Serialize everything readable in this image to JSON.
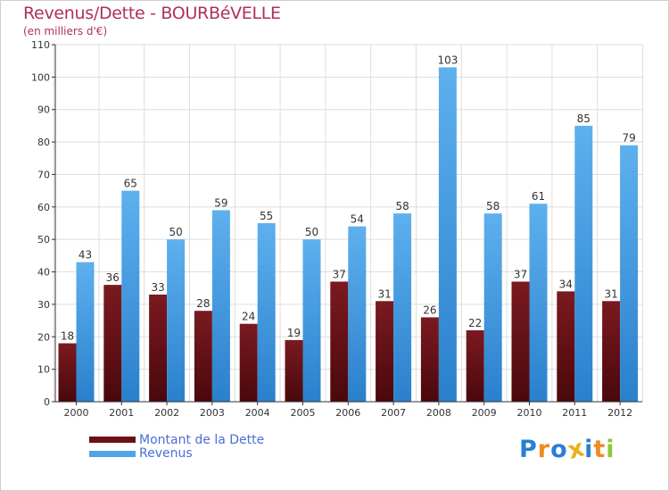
{
  "title": "Revenus/Dette - BOURBéVELLE",
  "subtitle": "(en milliers d'€)",
  "colors": {
    "dette": "#6b1016",
    "revenus": "#4ea5e8",
    "title": "#b0305a",
    "legend_text": "#4a6fd6"
  },
  "legend": {
    "dette_label": "Montant de la Dette",
    "revenus_label": "Revenus"
  },
  "logo": {
    "letters": [
      "P",
      "r",
      "o",
      "x",
      "i",
      "t",
      "i"
    ],
    "colors": [
      "#2a7fd4",
      "#f08a24",
      "#2a7fd4",
      "#e8b21a",
      "#2a7fd4",
      "#f08a24",
      "#8cc63f"
    ]
  },
  "chart_data": {
    "type": "bar",
    "title": "Revenus/Dette - BOURBéVELLE",
    "ylabel": "(en milliers d'€)",
    "xlabel": "",
    "categories": [
      "2000",
      "2001",
      "2002",
      "2003",
      "2004",
      "2005",
      "2006",
      "2007",
      "2008",
      "2009",
      "2010",
      "2011",
      "2012"
    ],
    "series": [
      {
        "name": "Montant de la Dette",
        "values": [
          18,
          36,
          33,
          28,
          24,
          19,
          37,
          31,
          26,
          22,
          37,
          34,
          31
        ]
      },
      {
        "name": "Revenus",
        "values": [
          43,
          65,
          50,
          59,
          55,
          50,
          54,
          58,
          103,
          58,
          61,
          85,
          79
        ]
      }
    ],
    "ylim": [
      0,
      110
    ],
    "yticks": [
      0,
      10,
      20,
      30,
      40,
      50,
      60,
      70,
      80,
      90,
      100,
      110
    ],
    "grid": true,
    "legend_position": "bottom-left"
  }
}
